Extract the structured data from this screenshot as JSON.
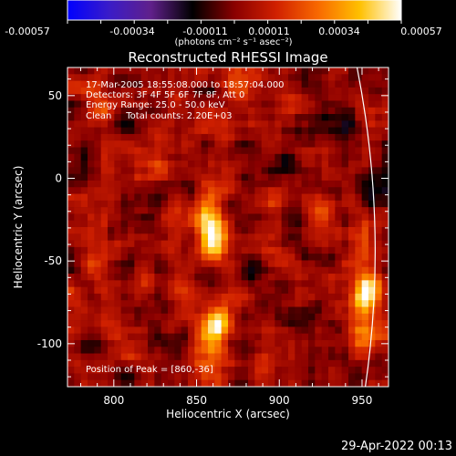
{
  "colorbar": {
    "ticks": [
      "-0.00057",
      "-0.00034",
      "-0.00011",
      "0.00011",
      "0.00034",
      "0.00057"
    ],
    "unit_label": "(photons cm⁻² s⁻¹ asec⁻²)",
    "stops": [
      "#0000ff",
      "#3a1cc8",
      "#60208a",
      "#000000",
      "#8a0000",
      "#d02000",
      "#f86800",
      "#ffc000",
      "#ffffff"
    ]
  },
  "chart_data": {
    "type": "heatmap",
    "title": "Reconstructed RHESSI Image",
    "xlabel": "Heliocentric X (arcsec)",
    "ylabel": "Heliocentric Y (arcsec)",
    "xlim": [
      772,
      966
    ],
    "ylim": [
      -126,
      67
    ],
    "xticks": [
      800,
      850,
      900,
      950
    ],
    "yticks": [
      50,
      0,
      -50,
      -100
    ],
    "value_range": [
      -0.00057,
      0.00057
    ],
    "annotations": [
      "17-Mar-2005 18:55:08.000 to 18:57:04.000",
      "Detectors: 3F 4F 5F 6F 7F 8F, Att 0",
      "Energy Range: 25.0 - 50.0 keV",
      "Clean     Total counts: 2.20E+03"
    ],
    "peak_label": "Position of Peak = [860,-36]",
    "peak": {
      "x": 860,
      "y": -36,
      "value": 0.00057
    },
    "sources": [
      {
        "x": 860,
        "y": -36,
        "value": 0.00057
      },
      {
        "x": 855,
        "y": -20,
        "value": 0.0003
      },
      {
        "x": 862,
        "y": -90,
        "value": 0.00048
      },
      {
        "x": 858,
        "y": -110,
        "value": 0.0003
      },
      {
        "x": 953,
        "y": -68,
        "value": 0.0005
      },
      {
        "x": 950,
        "y": -40,
        "value": 0.0002
      },
      {
        "x": 950,
        "y": -95,
        "value": 0.00022
      },
      {
        "x": 828,
        "y": 8,
        "value": 0.00018
      },
      {
        "x": 880,
        "y": 55,
        "value": 0.00016
      },
      {
        "x": 792,
        "y": 45,
        "value": 0.00014
      },
      {
        "x": 840,
        "y": -65,
        "value": 0.00016
      },
      {
        "x": 890,
        "y": -115,
        "value": 0.00015
      },
      {
        "x": 925,
        "y": -20,
        "value": 0.00014
      },
      {
        "x": 805,
        "y": -95,
        "value": 0.00013
      },
      {
        "x": 790,
        "y": -45,
        "value": 0.00012
      },
      {
        "x": 905,
        "y": 12,
        "value": -0.0001
      },
      {
        "x": 900,
        "y": -75,
        "value": -0.00011
      },
      {
        "x": 810,
        "y": -30,
        "value": -9e-05
      },
      {
        "x": 930,
        "y": 35,
        "value": -0.0001
      }
    ],
    "limb_arc": true
  },
  "footer": {
    "date": "29-Apr-2022 00:13"
  }
}
